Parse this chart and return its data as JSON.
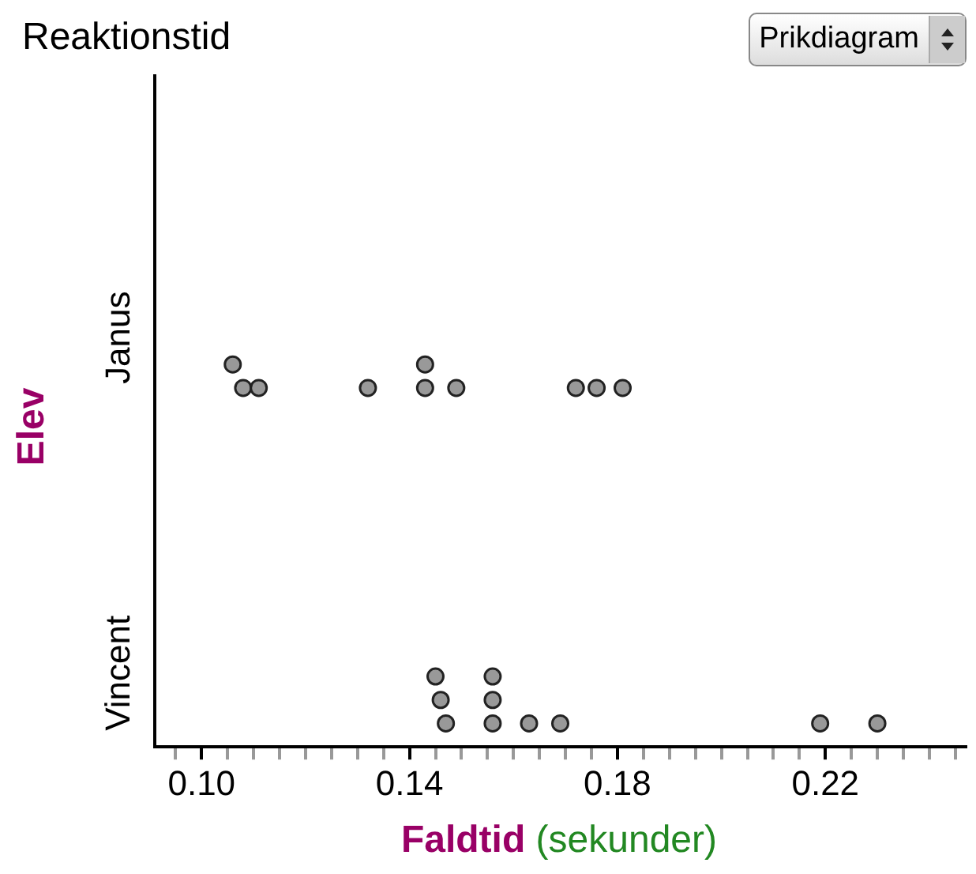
{
  "chart_data": {
    "type": "scatter",
    "orientation": "horizontal",
    "title": "Reaktionstid",
    "xlabel": "Faldtid (sekunder)",
    "ylabel": "Elev",
    "categories": [
      "Janus",
      "Vincent"
    ],
    "series": [
      {
        "color": "#999999",
        "x": [
          "Janus",
          "Janus",
          "Janus",
          "Janus",
          "Janus",
          "Janus",
          "Janus",
          "Janus",
          "Janus",
          "Janus",
          "Vincent",
          "Vincent",
          "Vincent",
          "Vincent",
          "Vincent",
          "Vincent",
          "Vincent",
          "Vincent",
          "Vincent",
          "Vincent"
        ],
        "values": [
          0.108,
          0.111,
          0.106,
          0.132,
          0.143,
          0.143,
          0.149,
          0.172,
          0.176,
          0.181,
          0.147,
          0.146,
          0.145,
          0.156,
          0.156,
          0.156,
          0.163,
          0.169,
          0.219,
          0.23
        ]
      }
    ],
    "xlim": [
      0.091,
      0.247
    ],
    "xticks": [
      {
        "value": 0.095,
        "label": null
      },
      {
        "value": 0.1,
        "label": "0.10"
      },
      {
        "value": 0.105,
        "label": null
      },
      {
        "value": 0.11,
        "label": null
      },
      {
        "value": 0.115,
        "label": null
      },
      {
        "value": 0.12,
        "label": null
      },
      {
        "value": 0.125,
        "label": null
      },
      {
        "value": 0.13,
        "label": null
      },
      {
        "value": 0.135,
        "label": null
      },
      {
        "value": 0.14,
        "label": "0.14"
      },
      {
        "value": 0.145,
        "label": null
      },
      {
        "value": 0.15,
        "label": null
      },
      {
        "value": 0.155,
        "label": null
      },
      {
        "value": 0.16,
        "label": null
      },
      {
        "value": 0.165,
        "label": null
      },
      {
        "value": 0.17,
        "label": null
      },
      {
        "value": 0.175,
        "label": null
      },
      {
        "value": 0.18,
        "label": "0.18"
      },
      {
        "value": 0.185,
        "label": null
      },
      {
        "value": 0.19,
        "label": null
      },
      {
        "value": 0.195,
        "label": null
      },
      {
        "value": 0.2,
        "label": null
      },
      {
        "value": 0.205,
        "label": null
      },
      {
        "value": 0.21,
        "label": null
      },
      {
        "value": 0.215,
        "label": null
      },
      {
        "value": 0.22,
        "label": "0.22"
      },
      {
        "value": 0.225,
        "label": null
      },
      {
        "value": 0.23,
        "label": null
      },
      {
        "value": 0.235,
        "label": null
      },
      {
        "value": 0.24,
        "label": null
      },
      {
        "value": 0.245,
        "label": null
      }
    ],
    "marker": "circle",
    "grid": false,
    "legend": false,
    "annotations": [
      "Prikdiagram"
    ]
  }
}
